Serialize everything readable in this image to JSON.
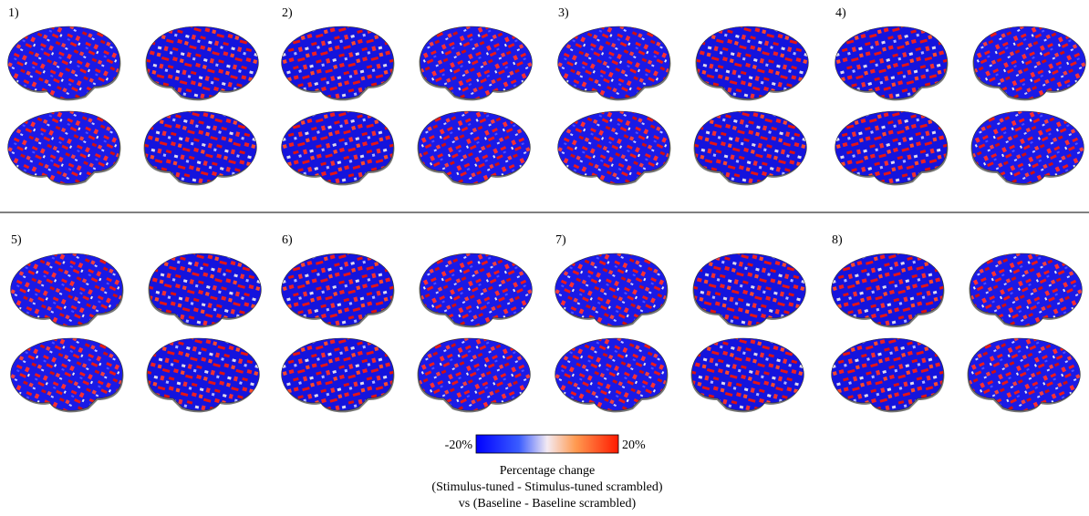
{
  "panels": [
    {
      "label": "1)"
    },
    {
      "label": "2)"
    },
    {
      "label": "3)"
    },
    {
      "label": "4)"
    },
    {
      "label": "5)"
    },
    {
      "label": "6)"
    },
    {
      "label": "7)"
    },
    {
      "label": "8)"
    }
  ],
  "colorbar": {
    "min_label": "-20%",
    "max_label": "20%"
  },
  "caption": [
    "Percentage change",
    "(Stimulus-tuned - Stimulus-tuned scrambled)",
    "vs (Baseline -  Baseline scrambled)"
  ]
}
